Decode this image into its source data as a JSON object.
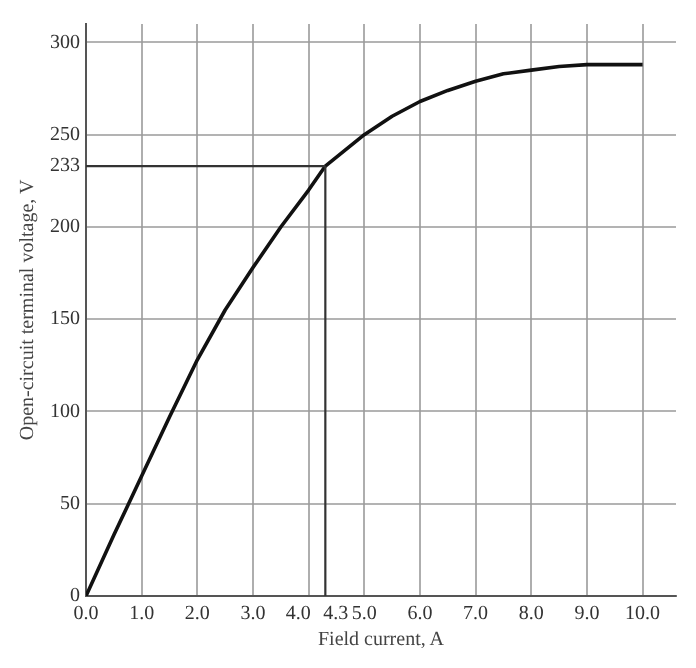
{
  "chart_data": {
    "type": "line",
    "xlabel": "Field current, A",
    "ylabel": "Open-circuit terminal voltage, V",
    "x": [
      0,
      0.5,
      1,
      1.5,
      2,
      2.5,
      3,
      3.5,
      4,
      4.3,
      5,
      5.5,
      6,
      6.5,
      7,
      7.5,
      8,
      8.5,
      9,
      9.5,
      10
    ],
    "series": [
      {
        "color": "#111111",
        "values": [
          0,
          33,
          65,
          97,
          128,
          155,
          178,
          200,
          220,
          233,
          250,
          260,
          268,
          274,
          279,
          283,
          285,
          287,
          288,
          288,
          288
        ]
      }
    ],
    "xlim": [
      0,
      10.6
    ],
    "ylim": [
      0,
      310
    ],
    "xticks": [
      {
        "value": 0,
        "label": "0.0"
      },
      {
        "value": 1,
        "label": "1.0"
      },
      {
        "value": 2,
        "label": "2.0"
      },
      {
        "value": 3,
        "label": "3.0"
      },
      {
        "value": 4,
        "label": "4.0"
      },
      4.3,
      {
        "value": 5,
        "label": "5.0"
      },
      {
        "value": 6,
        "label": "6.0"
      },
      {
        "value": 7,
        "label": "7.0"
      },
      {
        "value": 8,
        "label": "8.0"
      },
      {
        "value": 9,
        "label": "9.0"
      },
      {
        "value": 10,
        "label": "10.0"
      }
    ],
    "yticks": [
      0,
      50,
      100,
      150,
      200,
      233,
      250,
      300
    ],
    "ref_lines": [
      {
        "axis": "x",
        "value": 4.3,
        "color": "#333333"
      },
      {
        "axis": "y",
        "value": 233,
        "color": "#333333"
      }
    ],
    "grid": true,
    "marker": "none",
    "line_style": "solid",
    "legend": false
  }
}
